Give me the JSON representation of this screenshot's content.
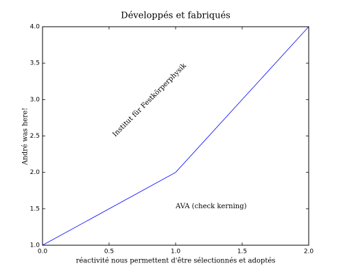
{
  "chart_data": {
    "type": "line",
    "title": "Développés et fabriqués",
    "xlabel": "réactivité nous permettent d'être sélectionnés et adoptés",
    "ylabel": "André was here!",
    "annotations": [
      "Institut für Festkörperphysik",
      "AVA (check kerning)"
    ],
    "x": [
      0,
      1,
      2
    ],
    "values": [
      1,
      2,
      4
    ],
    "color": "#0000ff",
    "xlim": [
      0,
      2
    ],
    "ylim": [
      1,
      4
    ],
    "xticks": [
      {
        "value": 0,
        "label": "0.0"
      },
      0.5,
      {
        "value": 1,
        "label": "1.0"
      },
      1.5,
      {
        "value": 2,
        "label": "2.0"
      }
    ],
    "yticks": [
      {
        "value": 1,
        "label": "1.0"
      },
      1.5,
      {
        "value": 2,
        "label": "2.0"
      },
      2.5,
      {
        "value": 3,
        "label": "3.0"
      },
      3.5,
      {
        "value": 4,
        "label": "4.0"
      }
    ]
  }
}
